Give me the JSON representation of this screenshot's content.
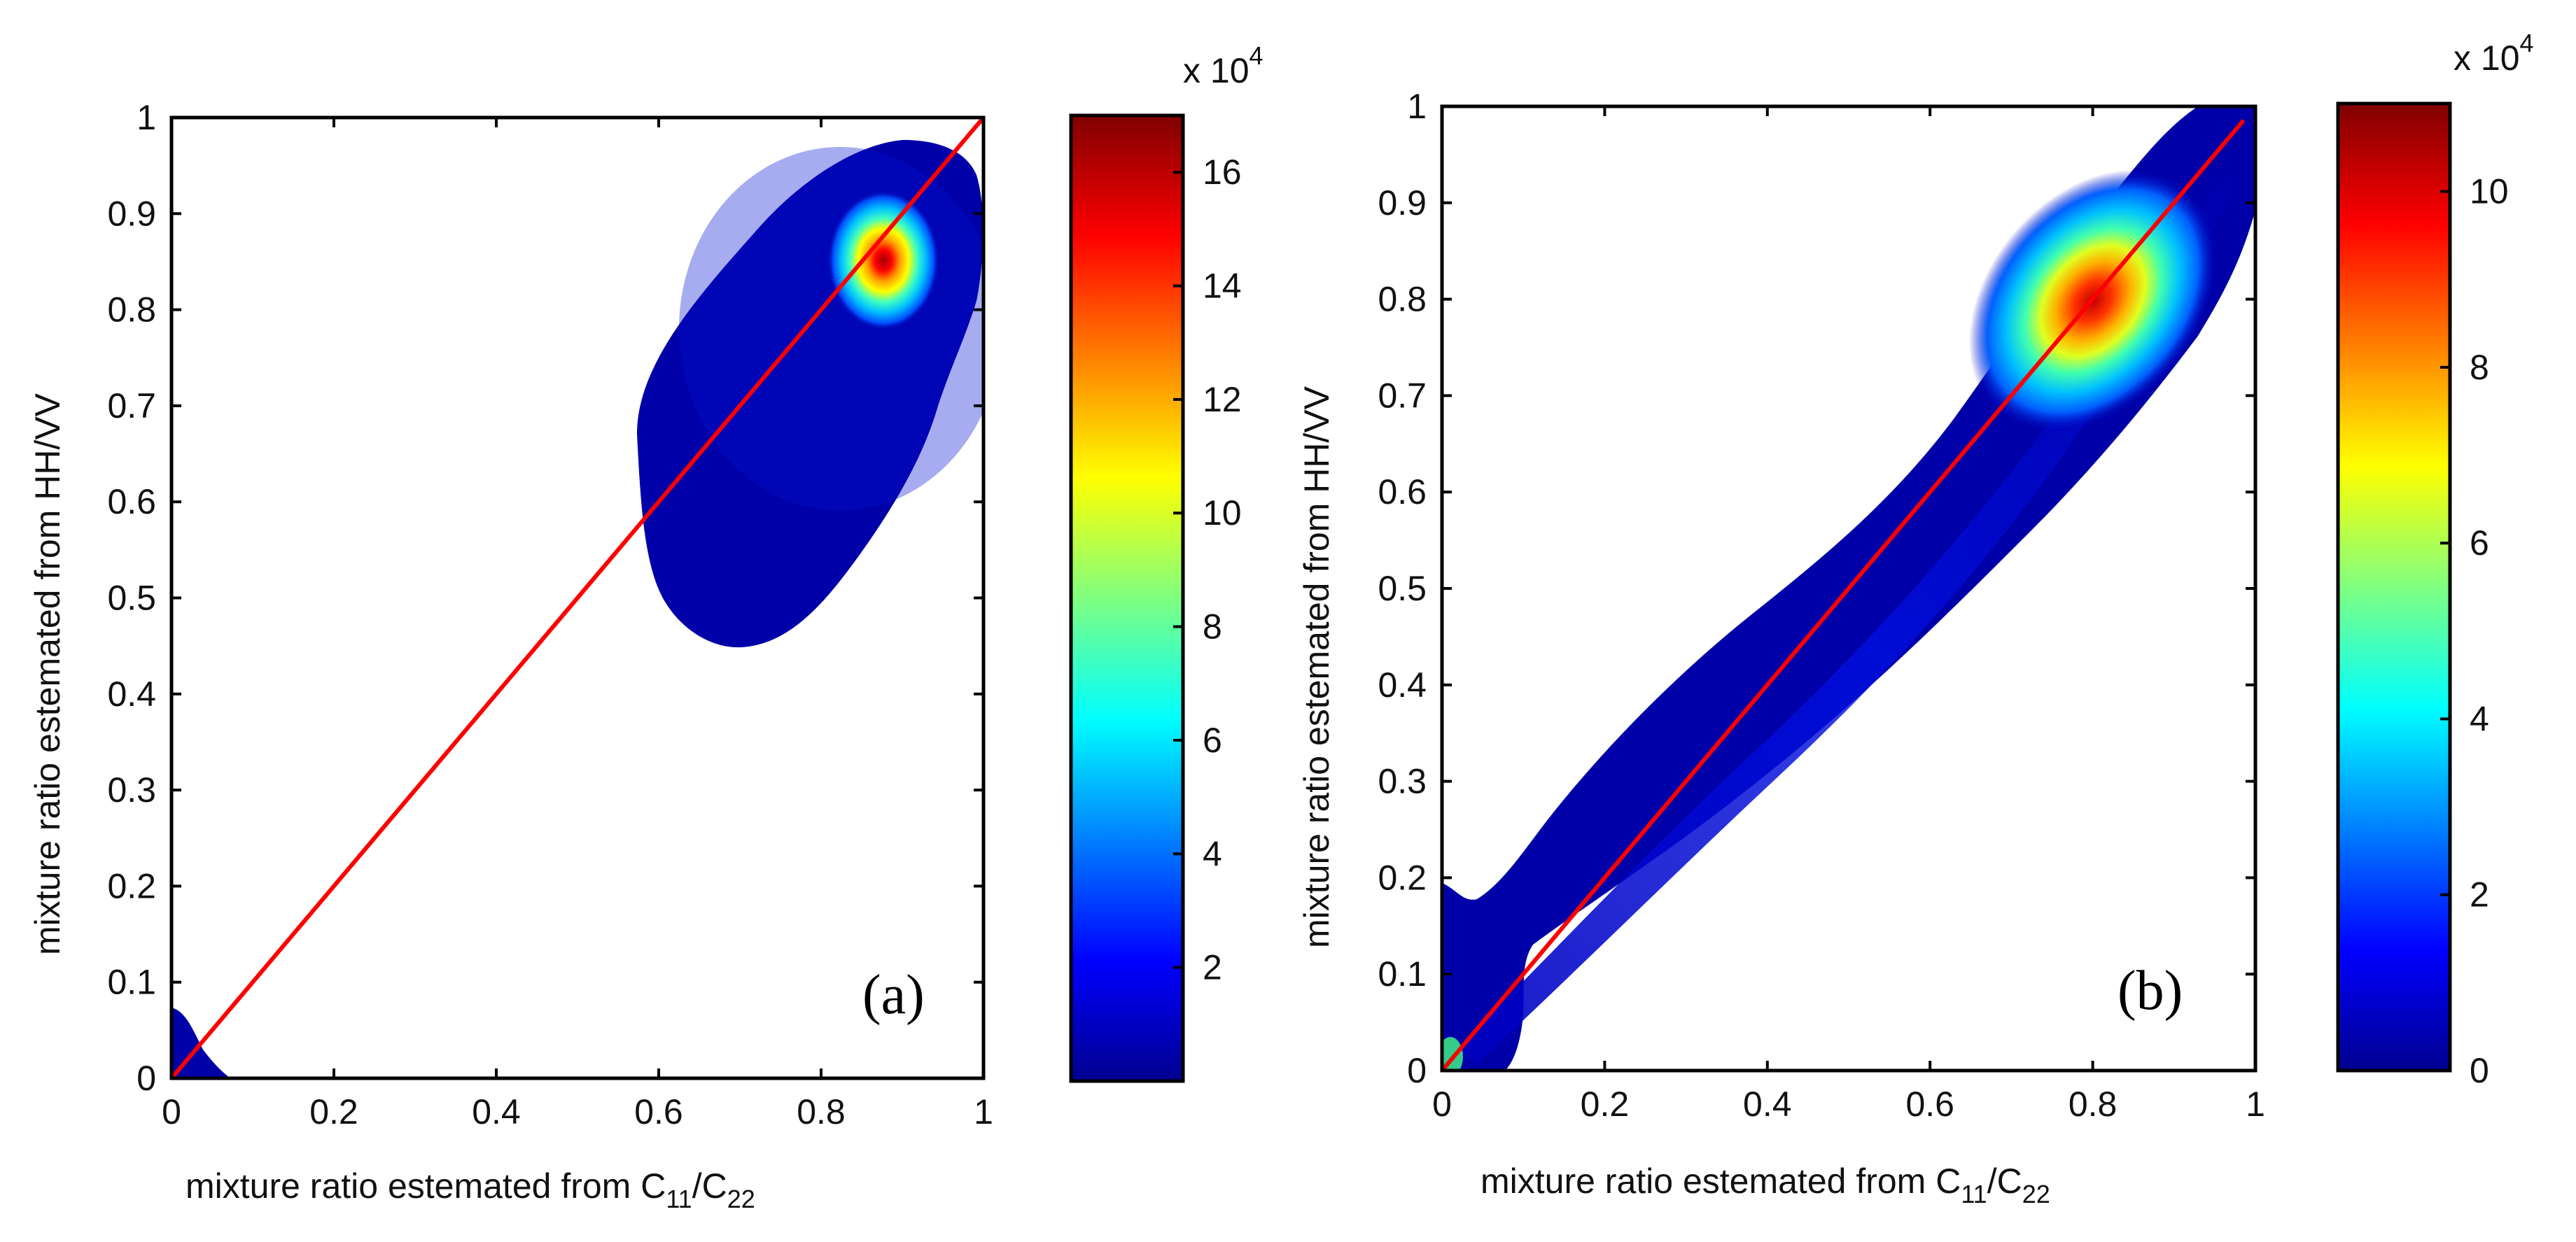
{
  "chart_data": [
    {
      "type": "heatmap",
      "panel": "(a)",
      "xlabel": "mixture ratio estemated from C",
      "ylabel": "mixture ratio estemated from HH/VV",
      "x_ticks": [
        "0",
        "0.2",
        "0.4",
        "0.6",
        "0.8",
        "1"
      ],
      "y_ticks": [
        "0",
        "0.1",
        "0.2",
        "0.3",
        "0.4",
        "0.5",
        "0.6",
        "0.7",
        "0.8",
        "0.9",
        "1"
      ],
      "xlim": [
        0,
        1
      ],
      "ylim": [
        0,
        1
      ],
      "reference_line": {
        "x": [
          0,
          1
        ],
        "y": [
          0,
          1
        ],
        "color": "#ff0000"
      },
      "colorbar": {
        "multiplier_base": "x 10",
        "multiplier_exp": "4",
        "range": [
          0,
          17
        ],
        "ticks": [
          "2",
          "4",
          "6",
          "8",
          "10",
          "12",
          "14",
          "16"
        ],
        "tick_values": [
          2,
          4,
          6,
          8,
          10,
          12,
          14,
          16
        ]
      },
      "density_peak": {
        "x": 0.89,
        "y": 0.85,
        "value": 17
      },
      "grid": false
    },
    {
      "type": "heatmap",
      "panel": "(b)",
      "xlabel": "mixture ratio estemated from C",
      "ylabel": "mixture ratio estemated from HH/VV",
      "x_ticks": [
        "0",
        "0.2",
        "0.4",
        "0.6",
        "0.8",
        "1"
      ],
      "y_ticks": [
        "0",
        "0.1",
        "0.2",
        "0.3",
        "0.4",
        "0.5",
        "0.6",
        "0.7",
        "0.8",
        "0.9",
        "1"
      ],
      "xlim": [
        0,
        1
      ],
      "ylim": [
        0,
        1
      ],
      "reference_line": {
        "x": [
          0,
          1
        ],
        "y": [
          0,
          1
        ],
        "color": "#ff0000"
      },
      "colorbar": {
        "multiplier_base": "x 10",
        "multiplier_exp": "4",
        "range": [
          0,
          11
        ],
        "ticks": [
          "0",
          "2",
          "4",
          "6",
          "8",
          "10"
        ],
        "tick_values": [
          0,
          2,
          4,
          6,
          8,
          10
        ]
      },
      "density_peak": {
        "x": 0.8,
        "y": 0.8,
        "value": 11
      },
      "grid": false
    }
  ],
  "labels": {
    "sub_11": "11",
    "sub_22": "22",
    "slash_c": "/C"
  },
  "colors": {
    "line": "#ff0000",
    "jet_low": "#00008f",
    "jet_high": "#800000"
  }
}
